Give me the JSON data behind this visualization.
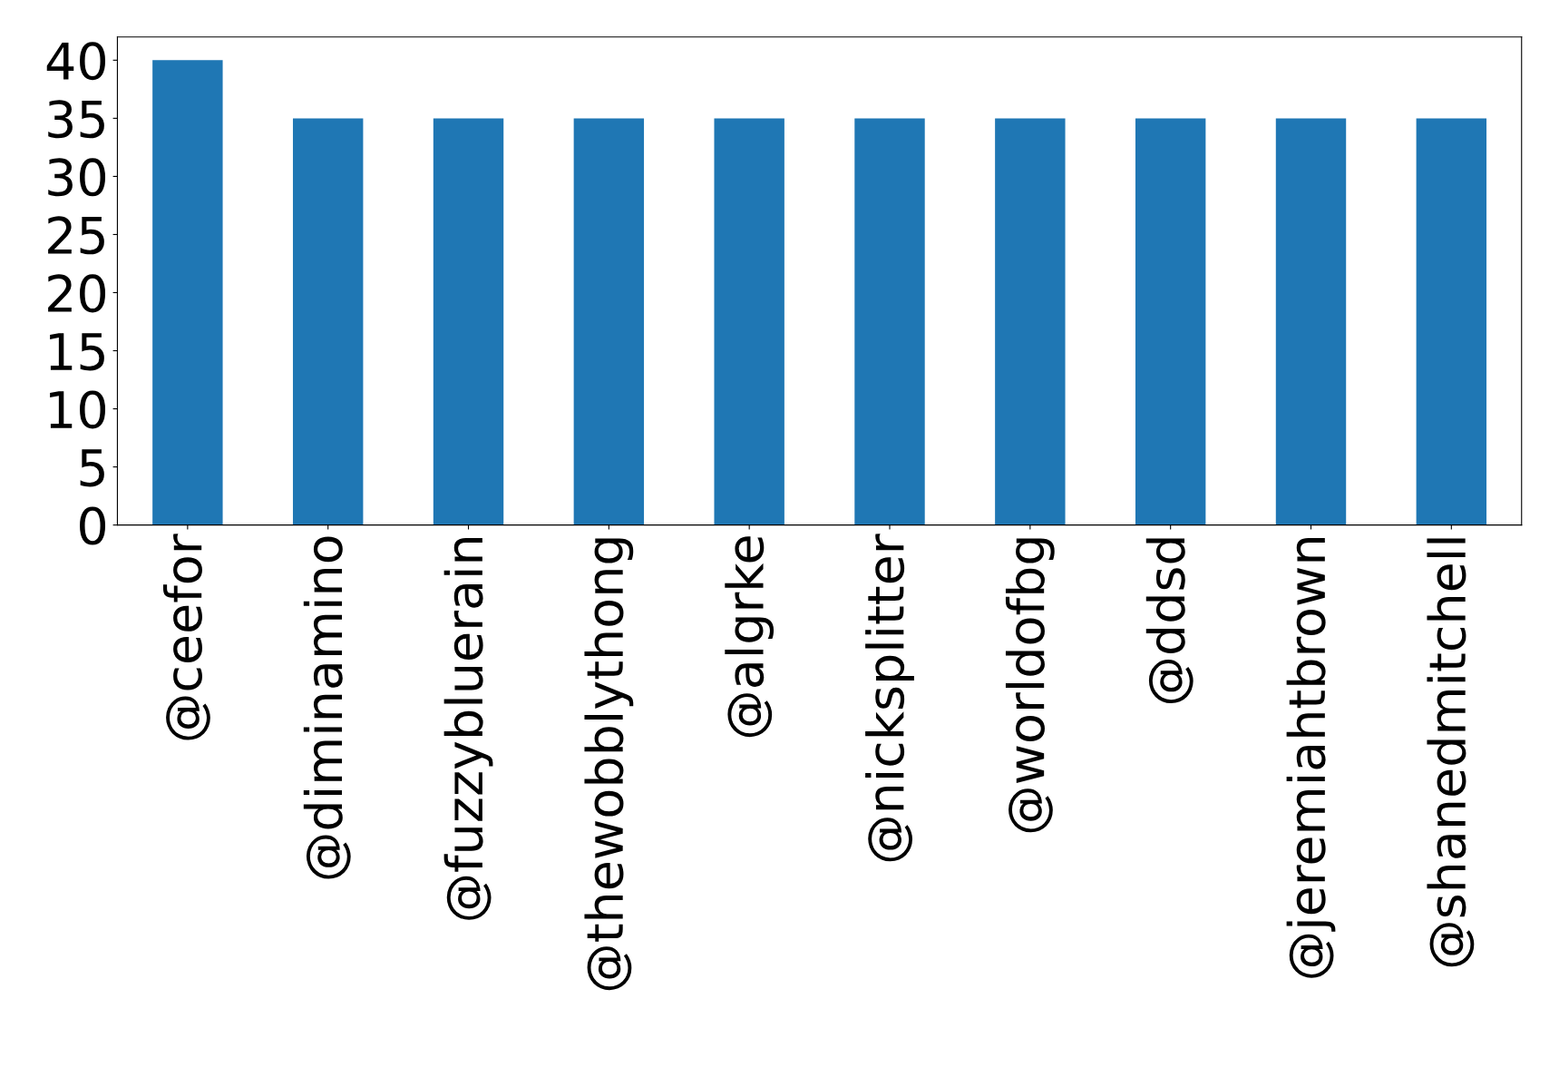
{
  "chart_data": {
    "type": "bar",
    "categories": [
      "@ceefor",
      "@diminamino",
      "@fuzzybluerain",
      "@thewobblythong",
      "@algrke",
      "@nicksplitter",
      "@worldofbg",
      "@ddsd",
      "@jeremiahtbrown",
      "@shanedmitchell"
    ],
    "values": [
      40,
      35,
      35,
      35,
      35,
      35,
      35,
      35,
      35,
      35
    ],
    "color": "#1f77b4",
    "ylim": [
      0,
      42
    ],
    "yticks": [
      0,
      5,
      10,
      15,
      20,
      25,
      30,
      35,
      40
    ],
    "grid": false
  }
}
